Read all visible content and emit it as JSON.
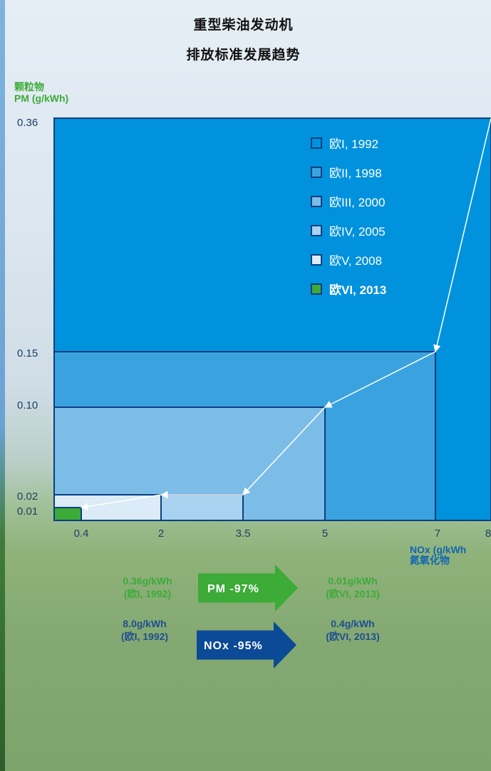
{
  "title": {
    "line1": "重型柴油发动机",
    "line2": "排放标准发展趋势"
  },
  "colors": {
    "euro1": "#0092dc",
    "euro2": "#3aa3df",
    "euro3": "#7cbde8",
    "euro4": "#a8d2f0",
    "euro5": "#dbecf8",
    "euro6": "#3cab38",
    "border": "#0b3f80",
    "arrow_green": "#3cab38",
    "arrow_blue": "#0b4a96"
  },
  "chart_data": {
    "type": "area",
    "ylabel": {
      "line1": "颗粒物",
      "line2": "PM (g/kWh)"
    },
    "xlabel": {
      "line1": "NOx (g/kWh",
      "line2": "氮氧化物"
    },
    "y_ticks": [
      "0.36",
      "0.15",
      "0.10",
      "0.02",
      "0.01"
    ],
    "x_ticks": [
      "0.4",
      "2",
      "3.5",
      "5",
      "7",
      "8"
    ],
    "series": [
      {
        "name": "欧I, 1992",
        "nox": 8.0,
        "pm": 0.36
      },
      {
        "name": "欧II, 1998",
        "nox": 7.0,
        "pm": 0.15
      },
      {
        "name": "欧III, 2000",
        "nox": 5.0,
        "pm": 0.1
      },
      {
        "name": "欧IV, 2005",
        "nox": 3.5,
        "pm": 0.02
      },
      {
        "name": "欧V, 2008",
        "nox": 2.0,
        "pm": 0.02
      },
      {
        "name": "欧VI, 2013",
        "nox": 0.4,
        "pm": 0.01
      }
    ]
  },
  "comparison": {
    "pm": {
      "from_value": "0.36g/kWh",
      "from_label": "(欧I, 1992)",
      "arrow": "PM -97%",
      "to_value": "0.01g/kWh",
      "to_label": "(欧VI, 2013)"
    },
    "nox": {
      "from_value": "8.0g/kWh",
      "from_label": "(欧I, 1992)",
      "arrow": "NOx -95%",
      "to_value": "0.4g/kWh",
      "to_label": "(欧VI, 2013)"
    }
  }
}
